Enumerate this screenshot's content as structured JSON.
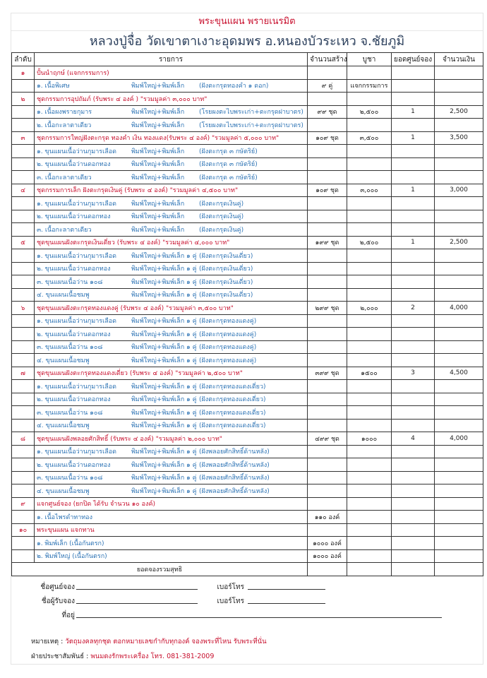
{
  "title": "พระขุนแผน พรายเนรมิต",
  "subtitle": "หลวงปู่จื่อ วัดเขาตาเงาะอุดมพร อ.หนองบัวระเหว จ.ชัยภูมิ",
  "colors": {
    "category": "#c8102e",
    "item": "#2e74b5"
  },
  "columns": [
    "ลำดับ",
    "รายการ",
    "จำนวนสร้าง",
    "บูชา",
    "ยอดศูนย์จอง",
    "จำนวนเงิน"
  ],
  "groups": [
    {
      "no": "๑",
      "title": "ปั้นนำฤกษ์ (แจกกรรมการ)",
      "qty": "",
      "price": "",
      "booked": "",
      "amount": "",
      "items": [
        {
          "name": "๑. เนื้อพิเศษ",
          "d1": "พิมพ์ใหญ่+พิมพ์เล็ก",
          "d2": "(ฝังตะกรุดทองคำ ๑ ดอก)",
          "qty": "๙ คู่",
          "price": "แจกกรรมการ"
        }
      ]
    },
    {
      "no": "๒",
      "title": "ชุดกรรมการอุปถัมภ์ (รับพระ ๔ องค์ ) \"รวมมูลค่า ๓,๐๐๐ บาท\"",
      "qty": "",
      "price": "",
      "booked": "",
      "amount": "",
      "items": [
        {
          "name": "๑. เนื้อผงพรายกุมาร",
          "d1": "พิมพ์ใหญ่+พิมพ์เล็ก",
          "d2": "(โรยผงตะไบพระเก่า+ตะกรุดฝาบาตร)",
          "qty": "๙๙ ชุด",
          "price": "๒,๕๐๐",
          "booked": "1",
          "amount": "2,500"
        },
        {
          "name": "๒. เนื้อกะลาตาเดียว",
          "d1": "พิมพ์ใหญ่+พิมพ์เล็ก",
          "d2": "(โรยผงตะไบพระเก่า+ตะกรุดฝาบาตร)"
        }
      ]
    },
    {
      "no": "๓",
      "title": "ชุดกรรมการใหญ่ฝังตะกรุด ทองคำ เงิน ทองแดง(รับพระ ๔ องค์) \"รวมมูลค่า ๕,๐๐๐ บาท\"",
      "qty": "๑๐๙ ชุด",
      "price": "๓,๕๐๐",
      "booked": "1",
      "amount": "3,500",
      "items": [
        {
          "name": "๑. ขุนแผนเนื้อว่านกุมารเลือด",
          "d1": "พิมพ์ใหญ่+พิมพ์เล็ก",
          "d2": "(ฝังตะกรุด ๓ กษัตริย์)"
        },
        {
          "name": "๒. ขุนแผนเนื้อว่านดอกทอง",
          "d1": "พิมพ์ใหญ่+พิมพ์เล็ก",
          "d2": "(ฝังตะกรุด ๓ กษัตริย์)"
        },
        {
          "name": "๓. เนื้อกะลาตาเดียว",
          "d1": "พิมพ์ใหญ่+พิมพ์เล็ก",
          "d2": "(ฝังตะกรุด ๓ กษัตริย์)"
        }
      ]
    },
    {
      "no": "๔",
      "title": "ชุดกรรมการเล็ก ฝังตะกรุดเงินคู่ (รับพระ ๔ องค์) \"รวมมูลค่า ๔,๕๐๐ บาท\"",
      "qty": "๑๐๙ ชุด",
      "price": "๓,๐๐๐",
      "booked": "1",
      "amount": "3,000",
      "items": [
        {
          "name": "๑. ขุนแผนเนื้อว่านกุมารเลือด",
          "d1": "พิมพ์ใหญ่+พิมพ์เล็ก",
          "d2": "(ฝังตะกรุดเงินคู่)"
        },
        {
          "name": "๒. ขุนแผนเนื้อว่านดอกทอง",
          "d1": "พิมพ์ใหญ่+พิมพ์เล็ก",
          "d2": "(ฝังตะกรุดเงินคู่)"
        },
        {
          "name": "๓. เนื้อกะลาตาเดียว",
          "d1": "พิมพ์ใหญ่+พิมพ์เล็ก",
          "d2": "(ฝังตะกรุดเงินคู่)"
        }
      ]
    },
    {
      "no": "๕",
      "title": "ชุดขุนแผนฝังตะกรุดเงินเดี่ยว (รับพระ ๔ องค์) \"รวมมูลค่า ๔,๐๐๐ บาท\"",
      "qty": "๑๙๙ ชุด",
      "price": "๒,๕๐๐",
      "booked": "1",
      "amount": "2,500",
      "items": [
        {
          "name": "๑. ขุนแผนเนื้อว่านกุมารเลือด",
          "d1": "พิมพ์ใหญ่+พิมพ์เล็ก ๑ คู่",
          "d2": "(ฝังตะกรุดเงินเดี่ยว)"
        },
        {
          "name": "๒. ขุนแผนเนื้อว่านดอกทอง",
          "d1": "พิมพ์ใหญ่+พิมพ์เล็ก ๑ คู่",
          "d2": "(ฝังตะกรุดเงินเดี่ยว)"
        },
        {
          "name": "๓. ขุนแผนเนื้อว่าน ๑๐๘",
          "d1": "พิมพ์ใหญ่+พิมพ์เล็ก ๑ คู่",
          "d2": "(ฝังตะกรุดเงินเดี่ยว)"
        },
        {
          "name": "๔. ขุนแผนเนื้อชมพู",
          "d1": "พิมพ์ใหญ่+พิมพ์เล็ก ๑ คู่",
          "d2": "(ฝังตะกรุดเงินเดี่ยว)"
        }
      ]
    },
    {
      "no": "๖",
      "title": "ชุดขุนแผนฝังตะกรุดทองแดงคู่ (รับพระ ๔ องค์) \"รวมมูลค่า ๓,๕๐๐ บาท\"",
      "qty": "๒๙๙ ชุด",
      "price": "๒,๐๐๐",
      "booked": "2",
      "amount": "4,000",
      "items": [
        {
          "name": "๑. ขุนแผนเนื้อว่านกุมารเลือด",
          "d1": "พิมพ์ใหญ่+พิมพ์เล็ก ๑ คู่",
          "d2": "(ฝังตะกรุดทองแดงคู่)"
        },
        {
          "name": "๒. ขุนแผนเนื้อว่านดอกทอง",
          "d1": "พิมพ์ใหญ่+พิมพ์เล็ก ๑ คู่",
          "d2": "(ฝังตะกรุดทองแดงคู่)"
        },
        {
          "name": "๓. ขุนแผนเนื้อว่าน ๑๐๘",
          "d1": "พิมพ์ใหญ่+พิมพ์เล็ก ๑ คู่",
          "d2": "(ฝังตะกรุดทองแดงคู่)"
        },
        {
          "name": "๔. ขุนแผนเนื้อชมพู",
          "d1": "พิมพ์ใหญ่+พิมพ์เล็ก ๑ คู่",
          "d2": "(ฝังตะกรุดทองแดงคู่)"
        }
      ]
    },
    {
      "no": "๗",
      "title": "ชุดขุนแผนฝังตะกรุดทองแดงเดี่ยว (รับพระ ๔ องค์) \"รวมมูลค่า ๒,๕๐๐ บาท\"",
      "qty": "๓๙๙ ชุด",
      "price": "๑๕๐๐",
      "booked": "3",
      "amount": "4,500",
      "items": [
        {
          "name": "๑. ขุนแผนเนื้อว่านกุมารเลือด",
          "d1": "พิมพ์ใหญ่+พิมพ์เล็ก ๑ คู่",
          "d2": "(ฝังตะกรุดทองแดงเดี่ยว)"
        },
        {
          "name": "๒. ขุนแผนเนื้อว่านดอกทอง",
          "d1": "พิมพ์ใหญ่+พิมพ์เล็ก ๑ คู่",
          "d2": "(ฝังตะกรุดทองแดงเดี่ยว)"
        },
        {
          "name": "๓. ขุนแผนเนื้อว่าน ๑๐๘",
          "d1": "พิมพ์ใหญ่+พิมพ์เล็ก ๑ คู่",
          "d2": "(ฝังตะกรุดทองแดงเดี่ยว)"
        },
        {
          "name": "๔. ขุนแผนเนื้อชมพู",
          "d1": "พิมพ์ใหญ่+พิมพ์เล็ก ๑ คู่",
          "d2": "(ฝังตะกรุดทองแดงเดี่ยว)"
        }
      ]
    },
    {
      "no": "๘",
      "title": "ชุดขุนแผนฝังพลอยศักสิทธิ์ (รับพระ ๔ องค์) \"รวมมูลค่า ๒,๐๐๐ บาท\"",
      "qty": "๔๙๙ ชุด",
      "price": "๑๐๐๐",
      "booked": "4",
      "amount": "4,000",
      "items": [
        {
          "name": "๑. ขุนแผนเนื้อว่านกุมารเลือด",
          "d1": "พิมพ์ใหญ่+พิมพ์เล็ก ๑ คู่",
          "d2": "(ฝังพลอยศักสิทธิ์ด้านหลัง)"
        },
        {
          "name": "๒. ขุนแผนเนื้อว่านดอกทอง",
          "d1": "พิมพ์ใหญ่+พิมพ์เล็ก ๑ คู่",
          "d2": "(ฝังพลอยศักสิทธิ์ด้านหลัง)"
        },
        {
          "name": "๓. ขุนแผนเนื้อว่าน ๑๐๘",
          "d1": "พิมพ์ใหญ่+พิมพ์เล็ก ๑ คู่",
          "d2": "(ฝังพลอยศักสิทธิ์ด้านหลัง)"
        },
        {
          "name": "๔. ขุนแผนเนื้อชมพู",
          "d1": "พิมพ์ใหญ่+พิมพ์เล็ก ๑ คู่",
          "d2": "(ฝังพลอยศักสิทธิ์ด้านหลัง)"
        }
      ]
    },
    {
      "no": "๙",
      "title": "แจกศูนย์จอง (ยกปิด ได้รับ จำนวน ๑๐ องค์)",
      "qty": "",
      "price": "",
      "booked": "",
      "amount": "",
      "items": [
        {
          "name": "๑. เนื้อไพรดำทาทอง",
          "d1": "",
          "d2": "",
          "qty": "๑๑๐ องค์"
        }
      ]
    },
    {
      "no": "๑๐",
      "title": "พระขุนแผน แจกทาน",
      "qty": "",
      "price": "",
      "booked": "",
      "amount": "",
      "items": [
        {
          "name": "๑. พิมพ์เล็ก (เนื้อกันตรก)",
          "d1": "",
          "d2": "",
          "qty": "๑๐๐๐ องค์"
        },
        {
          "name": "๒. พิมพ์ใหญ่ (เนื้อกันตรก)",
          "d1": "",
          "d2": "",
          "qty": "๑๐๐๐ องค์"
        }
      ]
    }
  ],
  "total_label": "ยอดจองรวมสุทธิ",
  "form": {
    "center_name": "ชื่อศูนย์จอง",
    "phone1": "เบอร์โทร",
    "receiver_name": "ชื่อผู้รับจอง",
    "phone2": "เบอร์โทร",
    "address": "ที่อยู่"
  },
  "notes": {
    "remark_label": "หมายเหตุ :",
    "remark": "วัตถุมงคลทุกชุด ตอกหมายเลขกำกับทุกองค์ จองพระที่ไหน รับพระที่นั่น",
    "pr_label": "ฝ่ายประชาสัมพันธ์ :",
    "pr": "พนมดงรักพระเครื่อง โทร. 081-381-2009"
  }
}
